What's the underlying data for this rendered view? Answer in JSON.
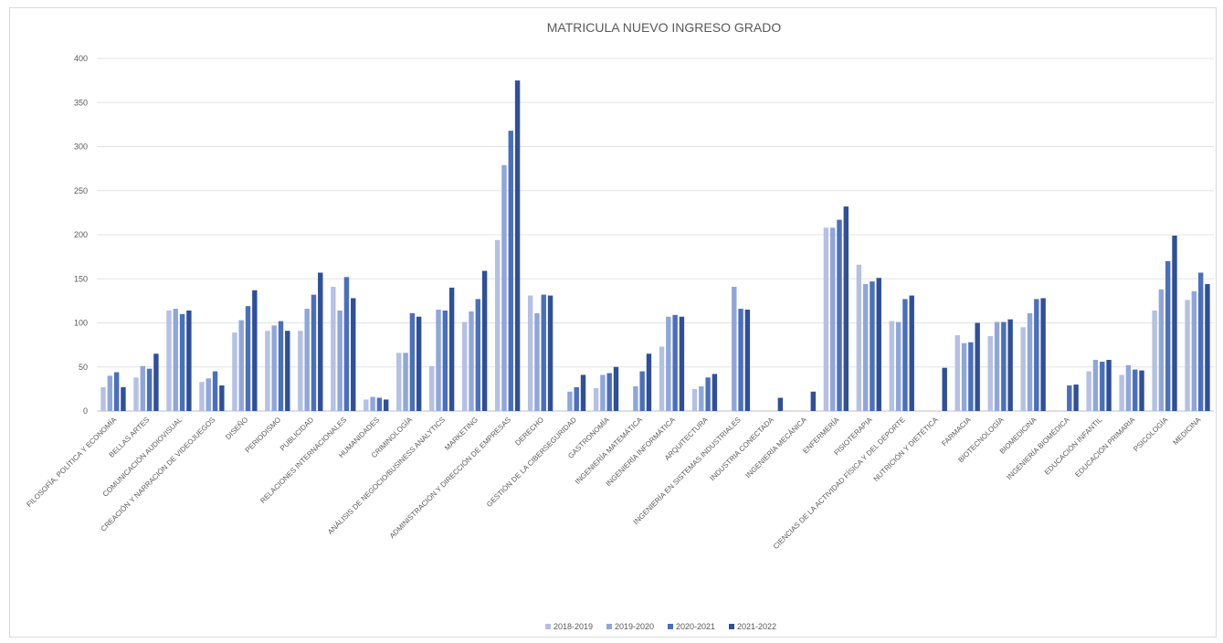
{
  "chart_data": {
    "type": "bar",
    "title": "MATRICULA NUEVO INGRESO GRADO",
    "xlabel": "",
    "ylabel": "",
    "ylim": [
      0,
      400
    ],
    "yticks": [
      0,
      50,
      100,
      150,
      200,
      250,
      300,
      350,
      400
    ],
    "grid": true,
    "legend_position": "bottom",
    "colors": [
      "#b4c1e3",
      "#8ea6dc",
      "#4a6fbd",
      "#2f4f9a"
    ],
    "categories": [
      "FILOSOFÍA, POLÍTICA Y ECONOMÍA",
      "BELLAS ARTES",
      "COMUNICACIÓN AUDIOVISUAL",
      "CREACIÓN Y NARRACIÓN DE VIDEOJUEGOS",
      "DISEÑO",
      "PERIODISMO",
      "PUBLICIDAD",
      "RELACIONES INTERNACIONALES",
      "HUMANIDADES",
      "CRIMINOLOGÍA",
      "ANÁLISIS DE NEGOCIO/BUSINESS ANALYTICS",
      "MARKETING",
      "ADMINISTRACIÓN Y DIRECCIÓN DE EMPRESAS",
      "DERECHO",
      "GESTIÓN DE LA CIBERSEGURIDAD",
      "GASTRONOMÍA",
      "INGENIERÍA MATEMÁTICA",
      "INGENIERÍA INFORMÁTICA",
      "ARQUITECTURA",
      "INGENIERÍA EN SISTEMAS INDUSTRIALES",
      "INDUSTRIA CONECTADA",
      "INGENIERÍA MECÁNICA",
      "ENFERMERÍA",
      "FISIOTERAPIA",
      "CIENCIAS DE LA ACTIVIDAD FÍSICA Y DEL DEPORTE",
      "NUTRICIÓN Y DIETÉTICA",
      "FARMACIA",
      "BIOTECNOLOGÍA",
      "BIOMEDICINA",
      "INGENIERÍA BIOMÉDICA",
      "EDUCACIÓN INFANTIL",
      "EDUCACIÓN PRIMARIA",
      "PSICOLOGÍA",
      "MEDICINA"
    ],
    "series": [
      {
        "name": "2018-2019",
        "values": [
          27,
          38,
          114,
          33,
          89,
          91,
          91,
          141,
          13,
          66,
          51,
          101,
          194,
          131,
          0,
          26,
          0,
          73,
          25,
          0,
          0,
          0,
          208,
          166,
          102,
          0,
          86,
          85,
          95,
          0,
          45,
          41,
          114,
          126
        ]
      },
      {
        "name": "2019-2020",
        "values": [
          40,
          51,
          116,
          37,
          103,
          97,
          116,
          114,
          16,
          66,
          115,
          113,
          279,
          111,
          22,
          41,
          28,
          107,
          28,
          141,
          0,
          0,
          208,
          144,
          101,
          0,
          77,
          101,
          111,
          0,
          58,
          52,
          138,
          136
        ]
      },
      {
        "name": "2020-2021",
        "values": [
          44,
          48,
          110,
          45,
          119,
          102,
          132,
          152,
          15,
          111,
          114,
          127,
          318,
          132,
          27,
          43,
          45,
          109,
          38,
          116,
          0,
          0,
          217,
          147,
          127,
          0,
          78,
          101,
          127,
          29,
          56,
          47,
          170,
          157
        ]
      },
      {
        "name": "2021-2022",
        "values": [
          27,
          65,
          114,
          29,
          137,
          91,
          157,
          128,
          13,
          107,
          140,
          159,
          375,
          131,
          41,
          50,
          65,
          107,
          42,
          115,
          15,
          22,
          232,
          151,
          131,
          49,
          100,
          104,
          128,
          30,
          58,
          46,
          199,
          144
        ]
      }
    ]
  }
}
